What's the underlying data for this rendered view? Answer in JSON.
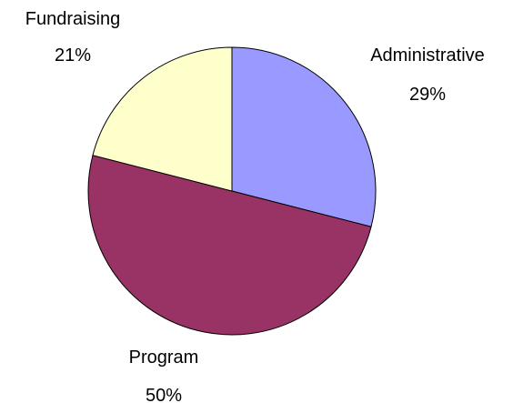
{
  "chart_data": {
    "type": "pie",
    "title": "",
    "legend": "none",
    "slices": [
      {
        "label": "Administrative",
        "value": 29,
        "value_label": "29%",
        "color": "#9999ff"
      },
      {
        "label": "Program",
        "value": 50,
        "value_label": "50%",
        "color": "#993366"
      },
      {
        "label": "Fundraising",
        "value": 21,
        "value_label": "21%",
        "color": "#ffffcc"
      }
    ]
  }
}
